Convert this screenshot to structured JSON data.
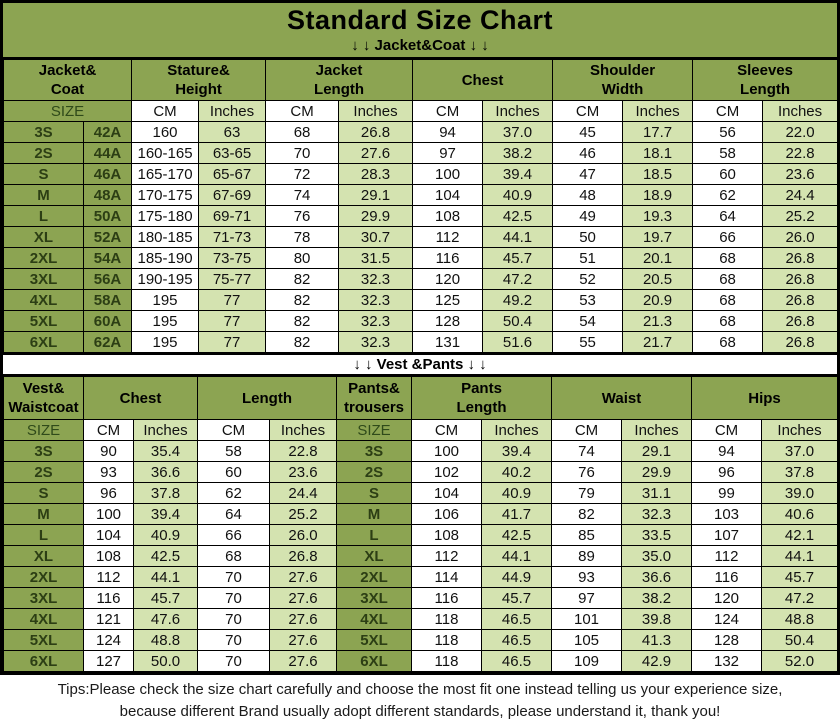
{
  "header": {
    "title": "Standard Size Chart",
    "jacket_banner": "↓ ↓  Jacket&Coat ↓ ↓"
  },
  "divider": {
    "vest_banner": "↓ ↓  Vest &Pants ↓ ↓"
  },
  "footer": {
    "tips_line1": "Tips:Please check the size chart carefully and choose the most fit one instead telling us your experience size,",
    "tips_line2": "because different Brand usually adopt different standards, please understand it, thank you!"
  },
  "colors": {
    "main_green": "#8CA452",
    "light_green": "#D4E3B0",
    "dark_green_text": "#2C3E14",
    "border": "#000000",
    "white": "#FFFFFF"
  },
  "jacket_table": {
    "header_groups": [
      {
        "label": "Jacket&\nCoat",
        "span": 2
      },
      {
        "label": "Stature&\nHeight",
        "span": 2
      },
      {
        "label": "Jacket\nLength",
        "span": 2
      },
      {
        "label": "Chest",
        "span": 2
      },
      {
        "label": "Shoulder\nWidth",
        "span": 2
      },
      {
        "label": "Sleeves\nLength",
        "span": 2
      }
    ],
    "subheader": [
      {
        "label": "SIZE",
        "span": 2,
        "type": "size"
      },
      {
        "label": "CM",
        "span": 1,
        "type": "cm"
      },
      {
        "label": "Inches",
        "span": 1,
        "type": "in"
      },
      {
        "label": "CM",
        "span": 1,
        "type": "cm"
      },
      {
        "label": "Inches",
        "span": 1,
        "type": "in"
      },
      {
        "label": "CM",
        "span": 1,
        "type": "cm"
      },
      {
        "label": "Inches",
        "span": 1,
        "type": "in"
      },
      {
        "label": "CM",
        "span": 1,
        "type": "cm"
      },
      {
        "label": "Inches",
        "span": 1,
        "type": "in"
      },
      {
        "label": "CM",
        "span": 1,
        "type": "cm"
      },
      {
        "label": "Inches",
        "span": 1,
        "type": "in"
      }
    ],
    "cell_types": [
      "size",
      "size",
      "cm",
      "in",
      "cm",
      "in",
      "cm",
      "in",
      "cm",
      "in",
      "cm",
      "in"
    ],
    "rows": [
      [
        "3S",
        "42A",
        "160",
        "63",
        "68",
        "26.8",
        "94",
        "37.0",
        "45",
        "17.7",
        "56",
        "22.0"
      ],
      [
        "2S",
        "44A",
        "160-165",
        "63-65",
        "70",
        "27.6",
        "97",
        "38.2",
        "46",
        "18.1",
        "58",
        "22.8"
      ],
      [
        "S",
        "46A",
        "165-170",
        "65-67",
        "72",
        "28.3",
        "100",
        "39.4",
        "47",
        "18.5",
        "60",
        "23.6"
      ],
      [
        "M",
        "48A",
        "170-175",
        "67-69",
        "74",
        "29.1",
        "104",
        "40.9",
        "48",
        "18.9",
        "62",
        "24.4"
      ],
      [
        "L",
        "50A",
        "175-180",
        "69-71",
        "76",
        "29.9",
        "108",
        "42.5",
        "49",
        "19.3",
        "64",
        "25.2"
      ],
      [
        "XL",
        "52A",
        "180-185",
        "71-73",
        "78",
        "30.7",
        "112",
        "44.1",
        "50",
        "19.7",
        "66",
        "26.0"
      ],
      [
        "2XL",
        "54A",
        "185-190",
        "73-75",
        "80",
        "31.5",
        "116",
        "45.7",
        "51",
        "20.1",
        "68",
        "26.8"
      ],
      [
        "3XL",
        "56A",
        "190-195",
        "75-77",
        "82",
        "32.3",
        "120",
        "47.2",
        "52",
        "20.5",
        "68",
        "26.8"
      ],
      [
        "4XL",
        "58A",
        "195",
        "77",
        "82",
        "32.3",
        "125",
        "49.2",
        "53",
        "20.9",
        "68",
        "26.8"
      ],
      [
        "5XL",
        "60A",
        "195",
        "77",
        "82",
        "32.3",
        "128",
        "50.4",
        "54",
        "21.3",
        "68",
        "26.8"
      ],
      [
        "6XL",
        "62A",
        "195",
        "77",
        "82",
        "32.3",
        "131",
        "51.6",
        "55",
        "21.7",
        "68",
        "26.8"
      ]
    ]
  },
  "vest_table": {
    "header_groups": [
      {
        "label": "Vest&\nWaistcoat",
        "span": 1
      },
      {
        "label": "Chest",
        "span": 2
      },
      {
        "label": "Length",
        "span": 2
      },
      {
        "label": "Pants&\ntrousers",
        "span": 1
      },
      {
        "label": "Pants\nLength",
        "span": 2
      },
      {
        "label": "Waist",
        "span": 2
      },
      {
        "label": "Hips",
        "span": 2
      }
    ],
    "subheader": [
      {
        "label": "SIZE",
        "span": 1,
        "type": "size"
      },
      {
        "label": "CM",
        "span": 1,
        "type": "cm"
      },
      {
        "label": "Inches",
        "span": 1,
        "type": "in"
      },
      {
        "label": "CM",
        "span": 1,
        "type": "cm"
      },
      {
        "label": "Inches",
        "span": 1,
        "type": "in"
      },
      {
        "label": "SIZE",
        "span": 1,
        "type": "size"
      },
      {
        "label": "CM",
        "span": 1,
        "type": "cm"
      },
      {
        "label": "Inches",
        "span": 1,
        "type": "in"
      },
      {
        "label": "CM",
        "span": 1,
        "type": "cm"
      },
      {
        "label": "Inches",
        "span": 1,
        "type": "in"
      },
      {
        "label": "CM",
        "span": 1,
        "type": "cm"
      },
      {
        "label": "Inches",
        "span": 1,
        "type": "in"
      }
    ],
    "cell_types": [
      "size",
      "cm",
      "in",
      "cm",
      "in",
      "size",
      "cm",
      "in",
      "cm",
      "in",
      "cm",
      "in"
    ],
    "rows": [
      [
        "3S",
        "90",
        "35.4",
        "58",
        "22.8",
        "3S",
        "100",
        "39.4",
        "74",
        "29.1",
        "94",
        "37.0"
      ],
      [
        "2S",
        "93",
        "36.6",
        "60",
        "23.6",
        "2S",
        "102",
        "40.2",
        "76",
        "29.9",
        "96",
        "37.8"
      ],
      [
        "S",
        "96",
        "37.8",
        "62",
        "24.4",
        "S",
        "104",
        "40.9",
        "79",
        "31.1",
        "99",
        "39.0"
      ],
      [
        "M",
        "100",
        "39.4",
        "64",
        "25.2",
        "M",
        "106",
        "41.7",
        "82",
        "32.3",
        "103",
        "40.6"
      ],
      [
        "L",
        "104",
        "40.9",
        "66",
        "26.0",
        "L",
        "108",
        "42.5",
        "85",
        "33.5",
        "107",
        "42.1"
      ],
      [
        "XL",
        "108",
        "42.5",
        "68",
        "26.8",
        "XL",
        "112",
        "44.1",
        "89",
        "35.0",
        "112",
        "44.1"
      ],
      [
        "2XL",
        "112",
        "44.1",
        "70",
        "27.6",
        "2XL",
        "114",
        "44.9",
        "93",
        "36.6",
        "116",
        "45.7"
      ],
      [
        "3XL",
        "116",
        "45.7",
        "70",
        "27.6",
        "3XL",
        "116",
        "45.7",
        "97",
        "38.2",
        "120",
        "47.2"
      ],
      [
        "4XL",
        "121",
        "47.6",
        "70",
        "27.6",
        "4XL",
        "118",
        "46.5",
        "101",
        "39.8",
        "124",
        "48.8"
      ],
      [
        "5XL",
        "124",
        "48.8",
        "70",
        "27.6",
        "5XL",
        "118",
        "46.5",
        "105",
        "41.3",
        "128",
        "50.4"
      ],
      [
        "6XL",
        "127",
        "50.0",
        "70",
        "27.6",
        "6XL",
        "118",
        "46.5",
        "109",
        "42.9",
        "132",
        "52.0"
      ]
    ]
  }
}
